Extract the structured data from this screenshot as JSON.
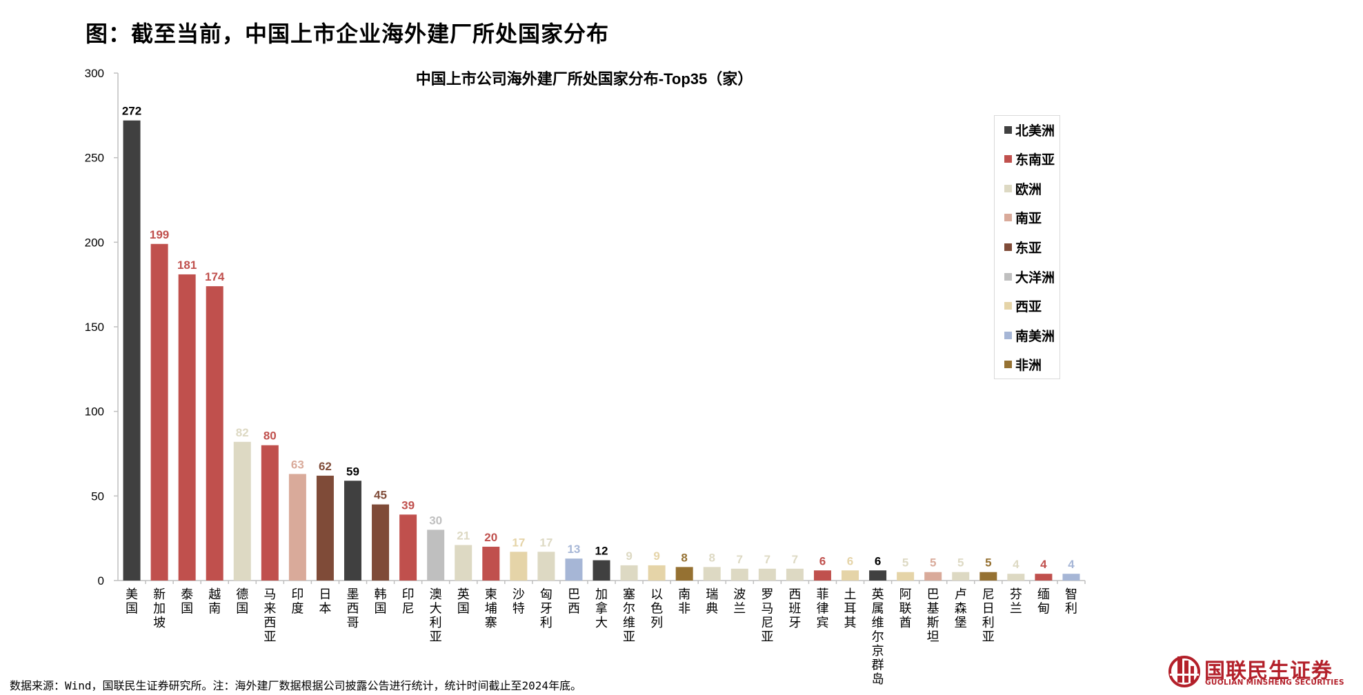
{
  "page": {
    "figure_title": "图：截至当前，中国上市企业海外建厂所处国家分布",
    "source_note": "数据来源：Wind，国联民生证券研究所。注：海外建厂数据根据公司披露公告进行统计，统计时间截止至2024年底。",
    "logo": {
      "name_cn": "国联民生证券",
      "name_en": "GUOLIAN MINSHENG SECURITIES",
      "color": "#b3202a"
    }
  },
  "chart_data": {
    "type": "bar",
    "title": "中国上市公司海外建厂所处国家分布-Top35（家）",
    "xlabel": "",
    "ylabel": "",
    "ylim": [
      0,
      300
    ],
    "yticks": [
      0,
      50,
      100,
      150,
      200,
      250,
      300
    ],
    "grid": false,
    "legend_position": "top-right",
    "regions": [
      {
        "name": "北美洲",
        "color": "#404040"
      },
      {
        "name": "东南亚",
        "color": "#c0504d"
      },
      {
        "name": "欧洲",
        "color": "#ddd9c3"
      },
      {
        "name": "南亚",
        "color": "#d9aa9a"
      },
      {
        "name": "东亚",
        "color": "#7f4b38"
      },
      {
        "name": "大洋洲",
        "color": "#bfbfbf"
      },
      {
        "name": "西亚",
        "color": "#e5d4a8"
      },
      {
        "name": "南美洲",
        "color": "#a6b6d6"
      },
      {
        "name": "非洲",
        "color": "#957132"
      }
    ],
    "categories": [
      "美国",
      "新加坡",
      "泰国",
      "越南",
      "德国",
      "马来西亚",
      "印度",
      "日本",
      "墨西哥",
      "韩国",
      "印尼",
      "澳大利亚",
      "英国",
      "柬埔寨",
      "沙特",
      "匈牙利",
      "巴西",
      "加拿大",
      "塞尔维亚",
      "以色列",
      "南非",
      "瑞典",
      "波兰",
      "罗马尼亚",
      "西班牙",
      "菲律宾",
      "土耳其",
      "英属维尔京群岛",
      "阿联酋",
      "巴基斯坦",
      "卢森堡",
      "尼日利亚",
      "芬兰",
      "缅甸",
      "智利"
    ],
    "values": [
      272,
      199,
      181,
      174,
      82,
      80,
      63,
      62,
      59,
      45,
      39,
      30,
      21,
      20,
      17,
      17,
      13,
      12,
      9,
      9,
      8,
      8,
      7,
      7,
      7,
      6,
      6,
      6,
      5,
      5,
      5,
      5,
      4,
      4,
      4
    ],
    "region_of_bar": [
      "北美洲",
      "东南亚",
      "东南亚",
      "东南亚",
      "欧洲",
      "东南亚",
      "南亚",
      "东亚",
      "北美洲",
      "东亚",
      "东南亚",
      "大洋洲",
      "欧洲",
      "东南亚",
      "西亚",
      "欧洲",
      "南美洲",
      "北美洲",
      "欧洲",
      "西亚",
      "非洲",
      "欧洲",
      "欧洲",
      "欧洲",
      "欧洲",
      "东南亚",
      "西亚",
      "北美洲",
      "西亚",
      "南亚",
      "欧洲",
      "非洲",
      "欧洲",
      "东南亚",
      "南美洲"
    ],
    "label_colors": [
      "#000000",
      "#c0504d",
      "#c0504d",
      "#c0504d",
      "#ddd9c3",
      "#c0504d",
      "#d9aa9a",
      "#7f4b38",
      "#000000",
      "#7f4b38",
      "#c0504d",
      "#bfbfbf",
      "#ddd9c3",
      "#c0504d",
      "#e5d4a8",
      "#ddd9c3",
      "#a6b6d6",
      "#000000",
      "#ddd9c3",
      "#e5d4a8",
      "#957132",
      "#ddd9c3",
      "#ddd9c3",
      "#ddd9c3",
      "#ddd9c3",
      "#c0504d",
      "#e5d4a8",
      "#000000",
      "#ddd9c3",
      "#d9aa9a",
      "#ddd9c3",
      "#957132",
      "#ddd9c3",
      "#c0504d",
      "#a6b6d6"
    ]
  }
}
